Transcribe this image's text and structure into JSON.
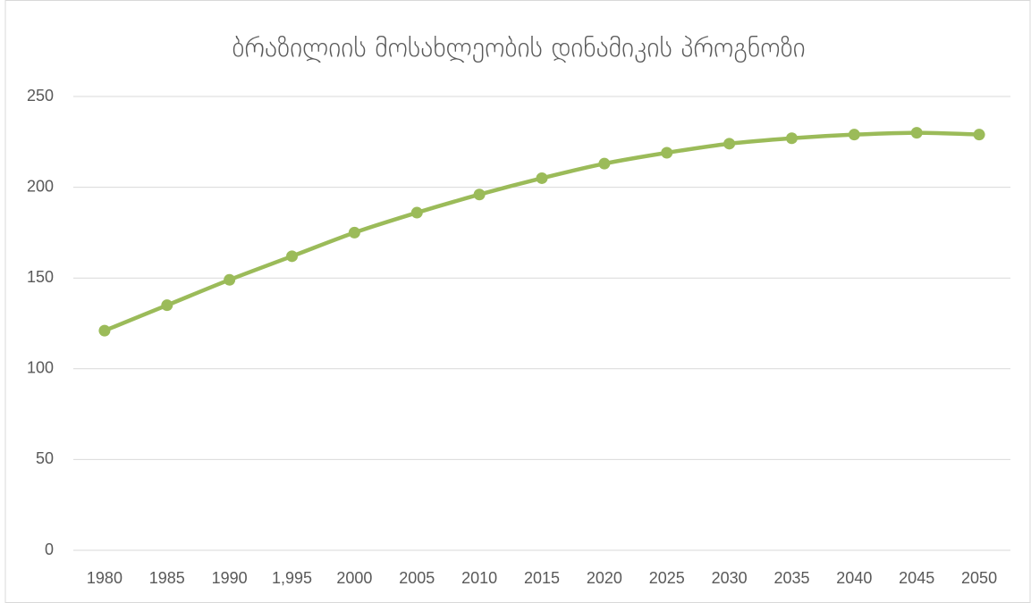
{
  "chart_data": {
    "type": "line",
    "title": "ბრაზილიის მოსახლეობის დინამიკის პროგნოზი",
    "categories": [
      "1980",
      "1985",
      "1990",
      "1,995",
      "2000",
      "2005",
      "2010",
      "2015",
      "2020",
      "2025",
      "2030",
      "2035",
      "2040",
      "2045",
      "2050"
    ],
    "series": [
      {
        "color": "#9bbb59",
        "values": [
          121,
          135,
          149,
          162,
          175,
          186,
          196,
          205,
          213,
          219,
          224,
          227,
          229,
          230,
          229
        ]
      }
    ],
    "ylim": [
      0,
      250
    ],
    "yticks": [
      0,
      50,
      100,
      150,
      200,
      250
    ],
    "grid": true,
    "smooth": true,
    "markers": true
  }
}
